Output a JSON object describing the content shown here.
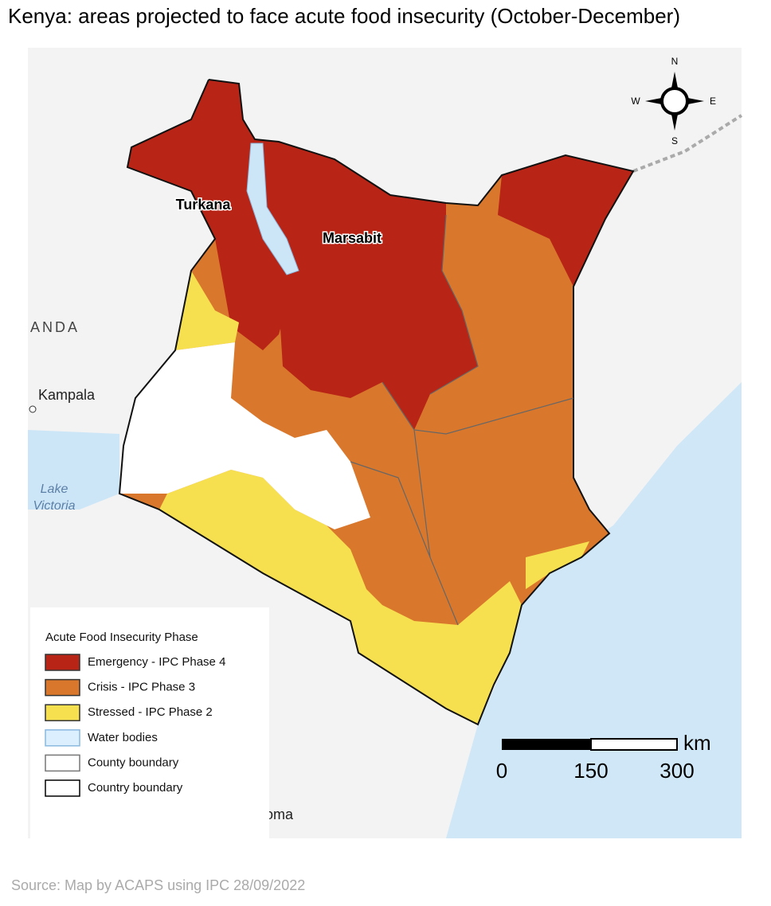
{
  "title": "Kenya: areas projected to face acute food insecurity (October-December)",
  "regions": [
    "Turkana",
    "Marsabit"
  ],
  "places": {
    "uganda": "ANDA",
    "kampala": "Kampala",
    "lake": [
      "Lake",
      "Victoria"
    ],
    "dodoma": "Dodoma"
  },
  "compass": {
    "n": "N",
    "w": "W",
    "e": "E",
    "s": "S"
  },
  "legend": {
    "title": "Acute Food Insecurity Phase",
    "items": [
      "Emergency - IPC Phase 4",
      "Crisis - IPC Phase 3",
      "Stressed - IPC Phase 2",
      "Water bodies",
      "County boundary",
      "Country boundary"
    ]
  },
  "scale": {
    "unit": "km",
    "ticks": [
      "0",
      "150",
      "300"
    ]
  },
  "source": "Source: Map by ACAPS using IPC 28/09/2022"
}
